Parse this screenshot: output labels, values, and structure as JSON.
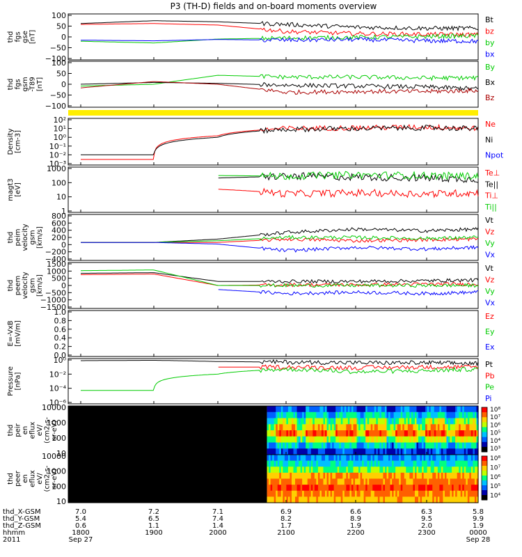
{
  "title": "P3 (TH-D) fields and on-board moments overview",
  "panels": [
    {
      "id": "fgs-gse",
      "ylabel": [
        "thd",
        "fgs",
        "gse",
        "[nT]"
      ],
      "ticks": [
        "100",
        "50",
        "0",
        "−50",
        "−100"
      ],
      "legend": [
        {
          "label": "Bt",
          "color": "#000000"
        },
        {
          "label": "bz",
          "color": "#ff0000"
        },
        {
          "label": "by",
          "color": "#00cc00"
        },
        {
          "label": "bx",
          "color": "#0000ff"
        }
      ]
    },
    {
      "id": "fgs-gsm",
      "ylabel": [
        "thd",
        "fgs",
        "gsm",
        "-T89",
        "[nT]"
      ],
      "ticks": [
        "100",
        "50",
        "0",
        "−50",
        "−100"
      ],
      "legend": [
        {
          "label": "By",
          "color": "#00cc00"
        },
        {
          "label": "Bx",
          "color": "#000000"
        },
        {
          "label": "Bz",
          "color": "#aa0000"
        }
      ]
    },
    {
      "id": "density",
      "ylabel": [
        "Density",
        "[cm-3]"
      ],
      "ticks": [
        "10²",
        "10¹",
        "10⁰",
        "10⁻¹",
        "10⁻²",
        "10⁻³"
      ],
      "legend": [
        {
          "label": "Ne",
          "color": "#ff0000"
        },
        {
          "label": "Ni",
          "color": "#000000"
        },
        {
          "label": "Npot",
          "color": "#0000ff"
        }
      ]
    },
    {
      "id": "temperature",
      "ylabel": [
        "magt3",
        "[eV]"
      ],
      "ticks": [
        "1000",
        "100",
        "10",
        "1"
      ],
      "legend": [
        {
          "label": "Te⊥",
          "color": "#ff0000"
        },
        {
          "label": "Te||",
          "color": "#000000"
        },
        {
          "label": "Ti⊥",
          "color": "#ff0000"
        },
        {
          "label": "Ti||",
          "color": "#00cc00"
        }
      ]
    },
    {
      "id": "peim-velocity",
      "ylabel": [
        "thd",
        "peim",
        "velocity",
        "gsm",
        "[km/s]"
      ],
      "ticks": [
        "800",
        "600",
        "400",
        "200",
        "0",
        "−200",
        "−400"
      ],
      "legend": [
        {
          "label": "Vt",
          "color": "#000000"
        },
        {
          "label": "Vz",
          "color": "#ff0000"
        },
        {
          "label": "Vy",
          "color": "#00cc00"
        },
        {
          "label": "Vx",
          "color": "#0000ff"
        }
      ]
    },
    {
      "id": "peem-velocity",
      "ylabel": [
        "thd",
        "peem",
        "velocity",
        "gsm",
        "[km/s]"
      ],
      "ticks": [
        "1500",
        "1000",
        "500",
        "0",
        "−500",
        "−1000",
        "−1500"
      ],
      "legend": [
        {
          "label": "Vt",
          "color": "#000000"
        },
        {
          "label": "Vz",
          "color": "#ff0000"
        },
        {
          "label": "Vy",
          "color": "#00cc00"
        },
        {
          "label": "Vx",
          "color": "#0000ff"
        }
      ]
    },
    {
      "id": "efield",
      "ylabel": [
        "E=-VxB",
        "[mV/m]"
      ],
      "ticks": [
        "1.0",
        "0.8",
        "0.6",
        "0.4",
        "0.2",
        "0.0"
      ],
      "legend": [
        {
          "label": "Ez",
          "color": "#ff0000"
        },
        {
          "label": "Ey",
          "color": "#00cc00"
        },
        {
          "label": "Ex",
          "color": "#0000ff"
        }
      ]
    },
    {
      "id": "pressure",
      "ylabel": [
        "Pressure",
        "[nPa]"
      ],
      "ticks": [
        "10⁰",
        "10⁻²",
        "10⁻⁴",
        "10⁻⁶"
      ],
      "legend": [
        {
          "label": "Pt",
          "color": "#000000"
        },
        {
          "label": "Pb",
          "color": "#ff0000"
        },
        {
          "label": "Pe",
          "color": "#00cc00"
        },
        {
          "label": "Pi",
          "color": "#0000ff"
        }
      ]
    },
    {
      "id": "peir",
      "ylabel": [
        "thd",
        "peir",
        "en",
        "eflux",
        "eV/",
        "(cm2-s-",
        "sr-eV)"
      ],
      "ticks": [
        "10000",
        "1000",
        "100",
        "10"
      ],
      "colorbar": [
        "10⁸",
        "10⁷",
        "10⁶",
        "10⁵",
        "10⁴",
        "10³"
      ]
    },
    {
      "id": "peer",
      "ylabel": [
        "thd",
        "peer",
        "en",
        "eflux",
        "eV/",
        "(cm2-s-",
        "sr-eV)"
      ],
      "ticks": [
        "10000",
        "1000",
        "100",
        "10"
      ],
      "colorbar": [
        "10⁸",
        "10⁷",
        "10⁶",
        "10⁵",
        "10⁴"
      ]
    }
  ],
  "xaxis": {
    "rows": [
      {
        "label": "thd_X-GSM",
        "values": [
          "7.0",
          "7.2",
          "7.1",
          "6.9",
          "6.6",
          "6.3",
          "5.8"
        ]
      },
      {
        "label": "thd_Y-GSM",
        "values": [
          "5.4",
          "6.5",
          "7.4",
          "8.2",
          "8.9",
          "9.5",
          "9.9"
        ]
      },
      {
        "label": "thd_Z-GSM",
        "values": [
          "0.6",
          "1.1",
          "1.4",
          "1.7",
          "1.9",
          "2.0",
          "1.9"
        ]
      },
      {
        "label": "hhmm",
        "values": [
          "1800",
          "1900",
          "2000",
          "2100",
          "2200",
          "2300",
          "0000"
        ]
      }
    ],
    "year": "2011",
    "start_date": "Sep 27",
    "end_date": "Sep 28"
  },
  "chart_data": {
    "type": "line",
    "title": "P3 (TH-D) fields and on-board moments overview",
    "x": [
      "1800",
      "1900",
      "2000",
      "2100",
      "2200",
      "2300",
      "0000"
    ],
    "series_note_free": true,
    "panels": [
      {
        "name": "fgs-gse",
        "ylim": [
          -100,
          100
        ],
        "series": [
          {
            "name": "Bt",
            "values": [
              62,
              75,
              70,
              58,
              45,
              40,
              40
            ]
          },
          {
            "name": "bz",
            "values": [
              58,
              62,
              55,
              25,
              15,
              12,
              10
            ]
          },
          {
            "name": "by",
            "values": [
              -20,
              -28,
              -10,
              -5,
              -2,
              2,
              5
            ]
          },
          {
            "name": "bx",
            "values": [
              -15,
              -18,
              -12,
              -15,
              -12,
              -18,
              -20
            ]
          }
        ]
      },
      {
        "name": "fgs-gsm",
        "ylim": [
          -120,
          120
        ],
        "series": [
          {
            "name": "By",
            "values": [
              -10,
              0,
              50,
              40,
              40,
              35,
              35
            ]
          },
          {
            "name": "Bx",
            "values": [
              0,
              10,
              5,
              -5,
              -10,
              -15,
              -25
            ]
          },
          {
            "name": "Bz",
            "values": [
              -20,
              15,
              0,
              -45,
              -40,
              -40,
              -35
            ]
          }
        ]
      },
      {
        "name": "density",
        "ylim": [
          0.001,
          100
        ],
        "log": true,
        "series": [
          {
            "name": "Ne",
            "values": [
              0.003,
              0.003,
              1.5,
              10,
              12,
              15,
              10
            ]
          },
          {
            "name": "Ni",
            "values": [
              0.01,
              0.01,
              1,
              8,
              10,
              12,
              10
            ]
          }
        ]
      },
      {
        "name": "temperature",
        "ylim": [
          1,
          3000
        ],
        "log": true,
        "series": [
          {
            "name": "Te||",
            "values": [
              null,
              null,
              500,
              700,
              600,
              500,
              400
            ]
          },
          {
            "name": "Ti||",
            "values": [
              null,
              null,
              800,
              700,
              900,
              800,
              700
            ]
          },
          {
            "name": "Te⊥",
            "values": [
              null,
              null,
              60,
              25,
              30,
              25,
              30
            ]
          }
        ]
      },
      {
        "name": "peim-velocity",
        "ylim": [
          -500,
          800
        ],
        "series": [
          {
            "name": "Vt",
            "values": [
              0,
              0,
              100,
              300,
              400,
              350,
              400
            ]
          },
          {
            "name": "Vz",
            "values": [
              0,
              0,
              0,
              100,
              50,
              80,
              100
            ]
          },
          {
            "name": "Vy",
            "values": [
              0,
              0,
              50,
              150,
              150,
              120,
              150
            ]
          },
          {
            "name": "Vx",
            "values": [
              0,
              0,
              -50,
              -250,
              -150,
              -200,
              -150
            ]
          }
        ]
      },
      {
        "name": "peem-velocity",
        "ylim": [
          -1600,
          1600
        ],
        "series": [
          {
            "name": "Vt",
            "values": [
              900,
              950,
              300,
              300,
              300,
              350,
              400
            ]
          },
          {
            "name": "Vz",
            "values": [
              800,
              850,
              0,
              50,
              50,
              100,
              100
            ]
          },
          {
            "name": "Vy",
            "values": [
              1100,
              1150,
              0,
              0,
              0,
              0,
              0
            ]
          },
          {
            "name": "Vx",
            "values": [
              null,
              null,
              -300,
              -600,
              -500,
              -600,
              -500
            ]
          }
        ]
      },
      {
        "name": "efield",
        "ylim": [
          0,
          1
        ],
        "series": []
      },
      {
        "name": "pressure",
        "ylim": [
          1e-06,
          1
        ],
        "log": true,
        "series": [
          {
            "name": "Pt",
            "values": [
              0.8,
              0.9,
              0.6,
              0.5,
              0.4,
              0.4,
              0.3
            ]
          },
          {
            "name": "Pb",
            "values": [
              null,
              null,
              0.1,
              0.1,
              0.08,
              0.1,
              0.1
            ]
          },
          {
            "name": "Pe",
            "values": [
              5e-05,
              5e-05,
              0.01,
              0.05,
              0.02,
              0.03,
              0.05
            ]
          },
          {
            "name": "Pi",
            "values": [
              null,
              null,
              0.0001,
              null,
              null,
              null,
              null
            ]
          }
        ]
      }
    ]
  }
}
